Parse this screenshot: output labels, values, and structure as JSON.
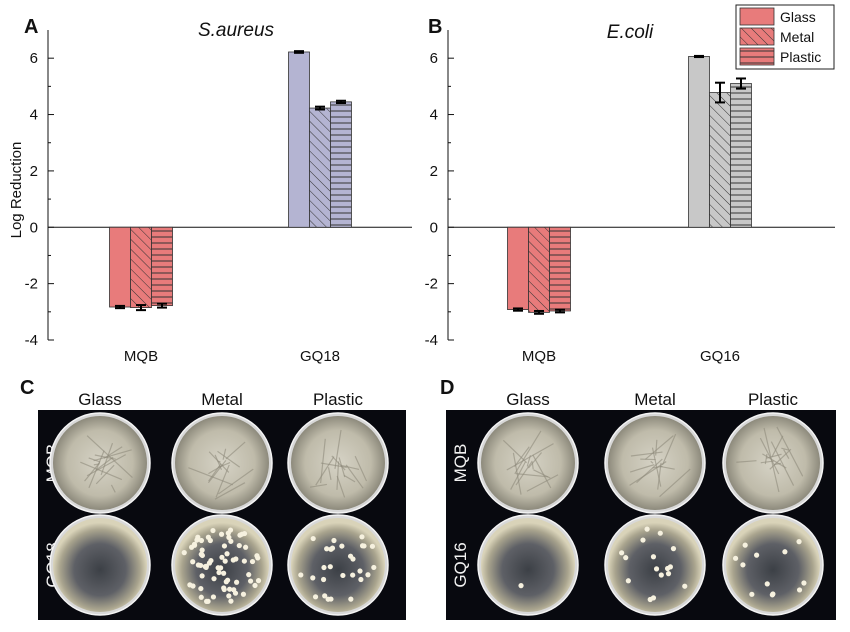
{
  "chart_data": [
    {
      "panel": "A",
      "type": "bar",
      "title": "S.aureus",
      "ylabel": "Log Reduction",
      "ylim": [
        -4,
        7
      ],
      "yticks": [
        -4,
        -2,
        0,
        2,
        4,
        6
      ],
      "categories": [
        "MQB",
        "GQ18"
      ],
      "grid": false,
      "series": [
        {
          "name": "Glass",
          "pattern": "solid",
          "values": [
            -2.83,
            6.22
          ],
          "errors": [
            0.04,
            0.03
          ]
        },
        {
          "name": "Metal",
          "pattern": "diagonal",
          "values": [
            -2.85,
            4.23
          ],
          "errors": [
            0.09,
            0.05
          ]
        },
        {
          "name": "Plastic",
          "pattern": "horizontal",
          "values": [
            -2.78,
            4.45
          ],
          "errors": [
            0.07,
            0.04
          ]
        }
      ]
    },
    {
      "panel": "B",
      "type": "bar",
      "title": "E.coli",
      "ylim": [
        -4,
        7
      ],
      "yticks": [
        -4,
        -2,
        0,
        2,
        4,
        6
      ],
      "categories": [
        "MQB",
        "GQ16"
      ],
      "legend": "top-right",
      "grid": false,
      "series": [
        {
          "name": "Glass",
          "pattern": "solid",
          "values": [
            -2.92,
            6.06
          ],
          "errors": [
            0.04,
            0.02
          ]
        },
        {
          "name": "Metal",
          "pattern": "diagonal",
          "values": [
            -3.02,
            4.78
          ],
          "errors": [
            0.05,
            0.35
          ]
        },
        {
          "name": "Plastic",
          "pattern": "horizontal",
          "values": [
            -2.97,
            5.1
          ],
          "errors": [
            0.05,
            0.18
          ]
        }
      ]
    }
  ],
  "colors": {
    "mqb_fill": "#e87b7b",
    "gq18_fill": "#b4b4d2",
    "gq16_fill": "#c8c8c8",
    "legend_fill": "#e87b7b"
  },
  "photos": [
    {
      "panel": "C",
      "columns": [
        "Glass",
        "Metal",
        "Plastic"
      ],
      "rows": [
        "MQB",
        "GQ18"
      ],
      "colony_counts": [
        [
          0,
          0,
          0
        ],
        [
          0,
          70,
          28
        ]
      ]
    },
    {
      "panel": "D",
      "columns": [
        "Glass",
        "Metal",
        "Plastic"
      ],
      "rows": [
        "MQB",
        "GQ16"
      ],
      "colony_counts": [
        [
          0,
          0,
          0
        ],
        [
          1,
          16,
          12
        ]
      ]
    }
  ]
}
